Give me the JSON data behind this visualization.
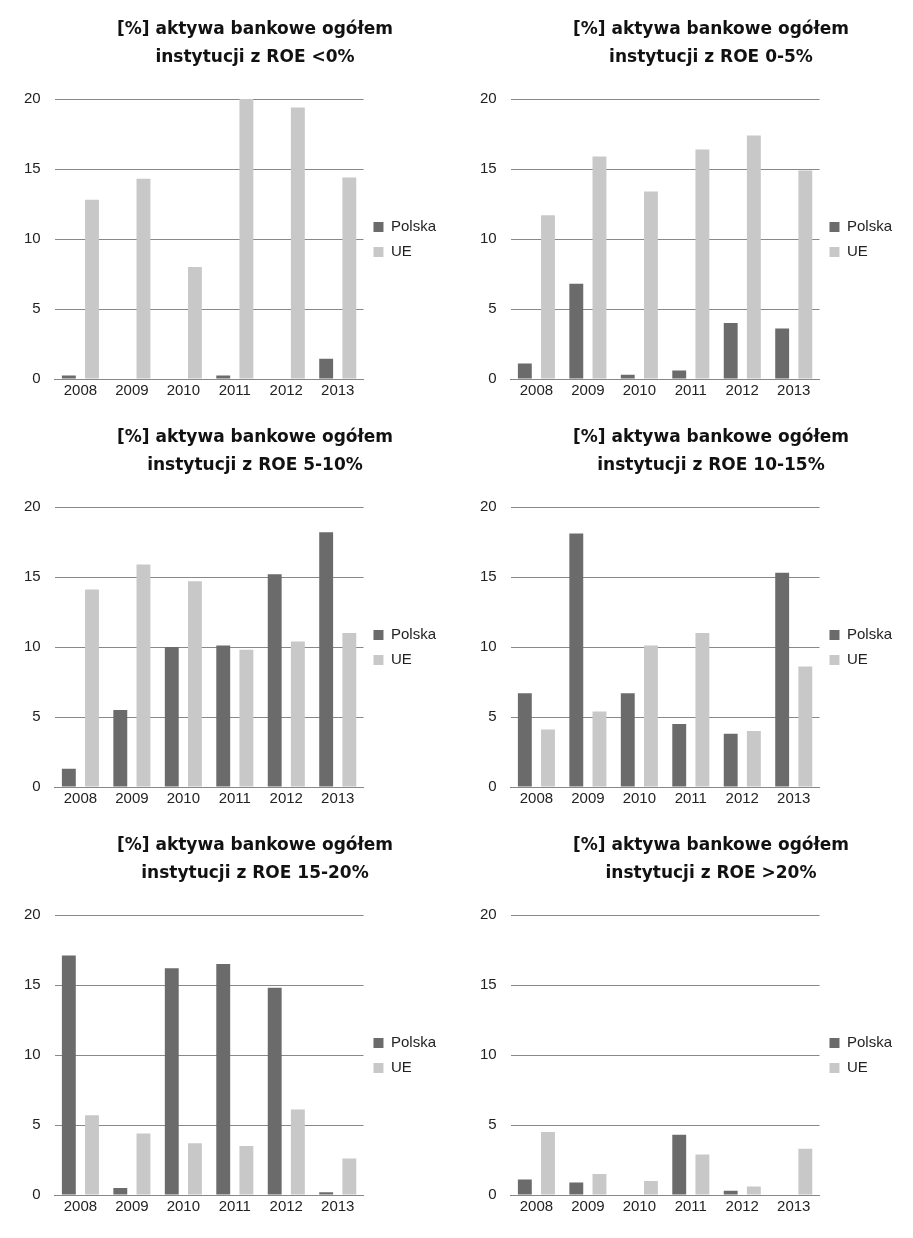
{
  "chart_data": [
    {
      "type": "bar",
      "title": "[%] aktywa bankowe ogółem instytucji z ROE <0%",
      "categories": [
        "2008",
        "2009",
        "2010",
        "2011",
        "2012",
        "2013"
      ],
      "series": [
        {
          "name": "Polska",
          "color": "#6b6b6b",
          "values": [
            0.25,
            0,
            0,
            0.25,
            0,
            1.45
          ]
        },
        {
          "name": "UE",
          "color": "#c8c8c8",
          "values": [
            12.8,
            14.3,
            8.0,
            20.0,
            19.4,
            14.4
          ]
        }
      ],
      "ylim": [
        0,
        20
      ],
      "yticks": [
        0,
        5,
        10,
        15,
        20
      ],
      "grid": "y",
      "legend": "right"
    },
    {
      "type": "bar",
      "title": "[%] aktywa bankowe ogółem instytucji z ROE 0-5%",
      "categories": [
        "2008",
        "2009",
        "2010",
        "2011",
        "2012",
        "2013"
      ],
      "series": [
        {
          "name": "Polska",
          "color": "#6b6b6b",
          "values": [
            1.1,
            6.8,
            0.3,
            0.6,
            4.0,
            3.6
          ]
        },
        {
          "name": "UE",
          "color": "#c8c8c8",
          "values": [
            11.7,
            15.9,
            13.4,
            16.4,
            17.4,
            14.9
          ]
        }
      ],
      "ylim": [
        0,
        20
      ],
      "yticks": [
        0,
        5,
        10,
        15,
        20
      ],
      "grid": "y",
      "legend": "right"
    },
    {
      "type": "bar",
      "title": "[%] aktywa bankowe ogółem instytucji z ROE 5-10%",
      "categories": [
        "2008",
        "2009",
        "2010",
        "2011",
        "2012",
        "2013"
      ],
      "series": [
        {
          "name": "Polska",
          "color": "#6b6b6b",
          "values": [
            1.3,
            5.5,
            10.0,
            10.1,
            15.2,
            18.2
          ]
        },
        {
          "name": "UE",
          "color": "#c8c8c8",
          "values": [
            14.1,
            15.9,
            14.7,
            9.8,
            10.4,
            11.0
          ]
        }
      ],
      "ylim": [
        0,
        20
      ],
      "yticks": [
        0,
        5,
        10,
        15,
        20
      ],
      "grid": "y",
      "legend": "right"
    },
    {
      "type": "bar",
      "title": "[%] aktywa bankowe ogółem instytucji z ROE 10-15%",
      "categories": [
        "2008",
        "2009",
        "2010",
        "2011",
        "2012",
        "2013"
      ],
      "series": [
        {
          "name": "Polska",
          "color": "#6b6b6b",
          "values": [
            6.7,
            18.1,
            6.7,
            4.5,
            3.8,
            15.3
          ]
        },
        {
          "name": "UE",
          "color": "#c8c8c8",
          "values": [
            4.1,
            5.4,
            10.1,
            11.0,
            4.0,
            8.6
          ]
        }
      ],
      "ylim": [
        0,
        20
      ],
      "yticks": [
        0,
        5,
        10,
        15,
        20
      ],
      "grid": "y",
      "legend": "right"
    },
    {
      "type": "bar",
      "title": "[%] aktywa bankowe ogółem instytucji z ROE 15-20%",
      "categories": [
        "2008",
        "2009",
        "2010",
        "2011",
        "2012",
        "2013"
      ],
      "series": [
        {
          "name": "Polska",
          "color": "#6b6b6b",
          "values": [
            17.1,
            0.5,
            16.2,
            16.5,
            14.8,
            0.2
          ]
        },
        {
          "name": "UE",
          "color": "#c8c8c8",
          "values": [
            5.7,
            4.4,
            3.7,
            3.5,
            6.1,
            2.6
          ]
        }
      ],
      "ylim": [
        0,
        20
      ],
      "yticks": [
        0,
        5,
        10,
        15,
        20
      ],
      "grid": "y",
      "legend": "right"
    },
    {
      "type": "bar",
      "title": "[%] aktywa bankowe ogółem instytucji z ROE >20%",
      "categories": [
        "2008",
        "2009",
        "2010",
        "2011",
        "2012",
        "2013"
      ],
      "series": [
        {
          "name": "Polska",
          "color": "#6b6b6b",
          "values": [
            1.1,
            0.9,
            0,
            4.3,
            0.3,
            0
          ]
        },
        {
          "name": "UE",
          "color": "#c8c8c8",
          "values": [
            4.5,
            1.5,
            1.0,
            2.9,
            0.6,
            3.3
          ]
        }
      ],
      "ylim": [
        0,
        20
      ],
      "yticks": [
        0,
        5,
        10,
        15,
        20
      ],
      "grid": "y",
      "legend": "right"
    }
  ]
}
